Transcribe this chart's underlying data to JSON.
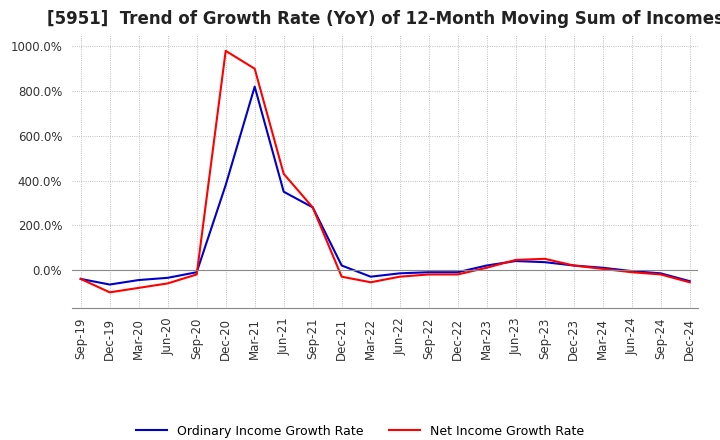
{
  "title": "[5951]  Trend of Growth Rate (YoY) of 12-Month Moving Sum of Incomes",
  "background_color": "#ffffff",
  "grid_color": "#aaaaaa",
  "legend_entries": [
    "Ordinary Income Growth Rate",
    "Net Income Growth Rate"
  ],
  "line_colors": [
    "#0000cc",
    "#ff0000"
  ],
  "x_labels": [
    "Sep-19",
    "Dec-19",
    "Mar-20",
    "Jun-20",
    "Sep-20",
    "Dec-20",
    "Mar-21",
    "Jun-21",
    "Sep-21",
    "Dec-21",
    "Mar-22",
    "Jun-22",
    "Sep-22",
    "Dec-22",
    "Mar-23",
    "Jun-23",
    "Sep-23",
    "Dec-23",
    "Mar-24",
    "Jun-24",
    "Sep-24",
    "Dec-24"
  ],
  "ordinary_income_growth": [
    -40,
    -65,
    -45,
    -35,
    -10,
    380,
    820,
    350,
    280,
    20,
    -30,
    -15,
    -10,
    -10,
    20,
    40,
    35,
    20,
    10,
    -5,
    -15,
    -50
  ],
  "net_income_growth": [
    -40,
    -100,
    -80,
    -60,
    -20,
    980,
    900,
    430,
    280,
    -30,
    -55,
    -30,
    -20,
    -20,
    10,
    45,
    50,
    20,
    5,
    -10,
    -20,
    -55
  ],
  "ylim": [
    -170,
    1050
  ],
  "yticks": [
    0,
    200,
    400,
    600,
    800,
    1000
  ],
  "title_fontsize": 12,
  "tick_fontsize": 8.5
}
